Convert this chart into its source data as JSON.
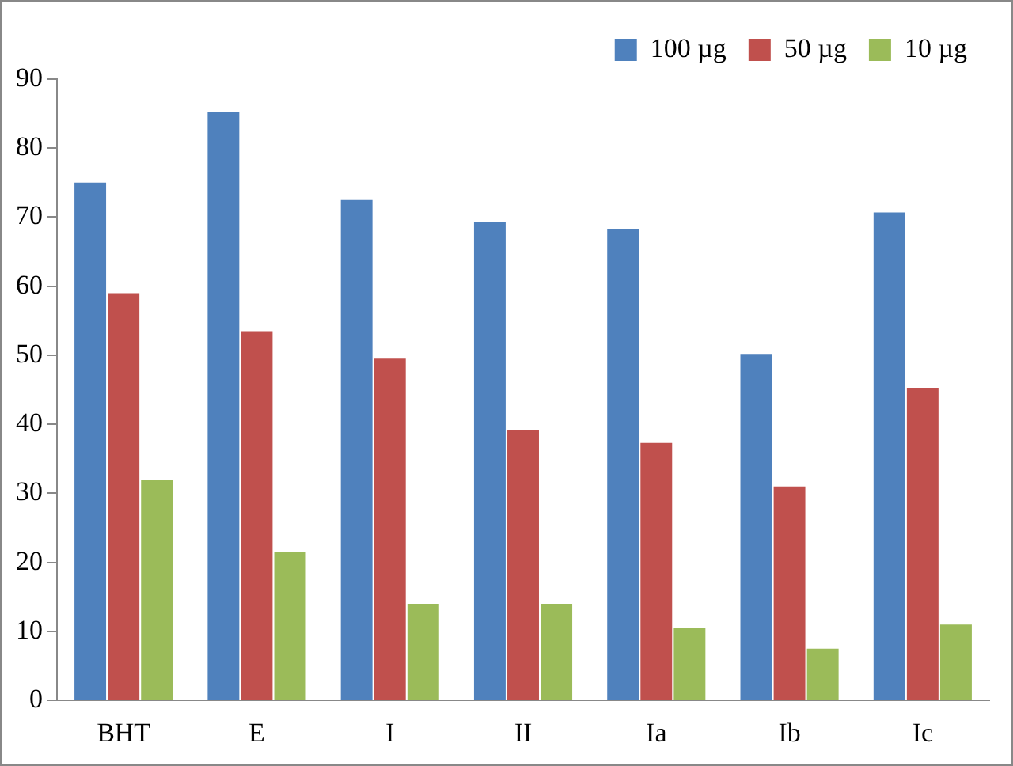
{
  "chart_data": {
    "type": "bar",
    "categories": [
      "BHT",
      "E",
      "I",
      "II",
      "Ia",
      "Ib",
      "Ic"
    ],
    "series": [
      {
        "name": "100 µg",
        "color": "#4f81bd",
        "values": [
          75,
          85.3,
          72.5,
          69.3,
          68.3,
          50.2,
          70.7
        ]
      },
      {
        "name": "50 µg",
        "color": "#c0504d",
        "values": [
          59,
          53.5,
          49.5,
          39.2,
          37.3,
          31,
          45.3
        ]
      },
      {
        "name": "10 µg",
        "color": "#9bbb59",
        "values": [
          32,
          21.5,
          14,
          14,
          10.5,
          7.5,
          11
        ]
      }
    ],
    "ylim": [
      0,
      90
    ],
    "yticks": [
      0,
      10,
      20,
      30,
      40,
      50,
      60,
      70,
      80,
      90
    ],
    "grid": false,
    "legend": "top right"
  }
}
